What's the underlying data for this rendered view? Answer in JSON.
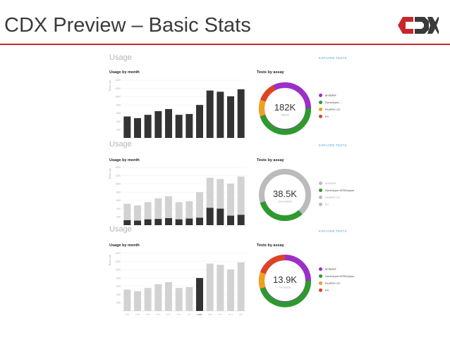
{
  "slide": {
    "title": "CDX Preview – Basic Stats"
  },
  "colors": {
    "accent_red": "#c8262c",
    "dark_bar": "#333333",
    "light_bar": "#d2d2d2",
    "purple": "#9b30c8",
    "green": "#2d9a2d",
    "orange": "#f0a020",
    "red": "#dd4422",
    "gray": "#bbbbbb"
  },
  "sections": [
    {
      "title": "Usage",
      "link": "EXPLORE TESTS",
      "chart_title": "Usage by month",
      "ylabel": "Tests run",
      "donut_title": "Tests by assay",
      "total": "182K",
      "total_label": "TESTS",
      "legend": [
        {
          "label": "MTB/RIF",
          "color": "#9b30c8"
        },
        {
          "label": "GeneXpert...",
          "color": "#2d9a2d"
        },
        {
          "label": "Flu/RSV XC",
          "color": "#f0a020"
        },
        {
          "label": "EV",
          "color": "#dd4422"
        }
      ]
    },
    {
      "title": "Usage",
      "link": "EXPLORE TESTS",
      "chart_title": "Usage by month",
      "ylabel": "Tests run",
      "donut_title": "Tests by assay",
      "total": "38.5K",
      "total_label": "37% TESTS",
      "legend": [
        {
          "label": "MTB/RIF",
          "color": "#bbbbbb"
        },
        {
          "label": "GeneXpert MTB/Xpkus",
          "color": "#2d9a2d"
        },
        {
          "label": "Flu/RSV XC",
          "color": "#bbbbbb"
        },
        {
          "label": "EV",
          "color": "#bbbbbb"
        }
      ]
    },
    {
      "title": "Usage",
      "link": "EXPLORE TESTS",
      "chart_title": "Usage by month",
      "ylabel": "Tests run",
      "donut_title": "Tests by assay",
      "total": "13.9K",
      "total_label": "7% TESTS",
      "legend": [
        {
          "label": "MTB/RIF",
          "color": "#9b30c8"
        },
        {
          "label": "GeneXpert MTB/Xpkus",
          "color": "#2d9a2d"
        },
        {
          "label": "Flu/RSV XC",
          "color": "#f0a020"
        },
        {
          "label": "EV",
          "color": "#dd4422"
        }
      ]
    }
  ],
  "chart_data": [
    {
      "type": "bar",
      "title": "Usage by month",
      "ylabel": "Tests run",
      "ylim": [
        0,
        1400
      ],
      "yticks": [
        "1400",
        "1200",
        "1000",
        "800",
        "600",
        "400",
        "200"
      ],
      "values": [
        520,
        480,
        560,
        650,
        700,
        560,
        580,
        800,
        1150,
        1120,
        1010,
        1180
      ]
    },
    {
      "type": "bar",
      "title": "Usage by month",
      "ylabel": "Tests run",
      "ylim": [
        0,
        1400
      ],
      "yticks": [
        "1400",
        "1200",
        "1000",
        "800",
        "600",
        "400",
        "200"
      ],
      "series": [
        {
          "name": "selected",
          "values": [
            120,
            110,
            140,
            150,
            170,
            140,
            160,
            180,
            420,
            400,
            230,
            250
          ]
        },
        {
          "name": "total",
          "values": [
            520,
            480,
            560,
            650,
            700,
            560,
            580,
            800,
            1150,
            1120,
            1010,
            1180
          ]
        }
      ]
    },
    {
      "type": "bar",
      "title": "Usage by month",
      "ylabel": "Tests run",
      "ylim": [
        0,
        1400
      ],
      "yticks": [
        "1400",
        "1200",
        "1000",
        "800",
        "600",
        "400",
        "200"
      ],
      "categories": [
        "JAN",
        "FEB",
        "MAR",
        "APR",
        "MAY",
        "JUN",
        "JUL",
        "AUG",
        "SEP",
        "OCT",
        "NOV",
        "DEC"
      ],
      "highlight_index": 7,
      "values": [
        520,
        480,
        560,
        650,
        700,
        560,
        580,
        800,
        1150,
        1120,
        1010,
        1180
      ]
    }
  ]
}
